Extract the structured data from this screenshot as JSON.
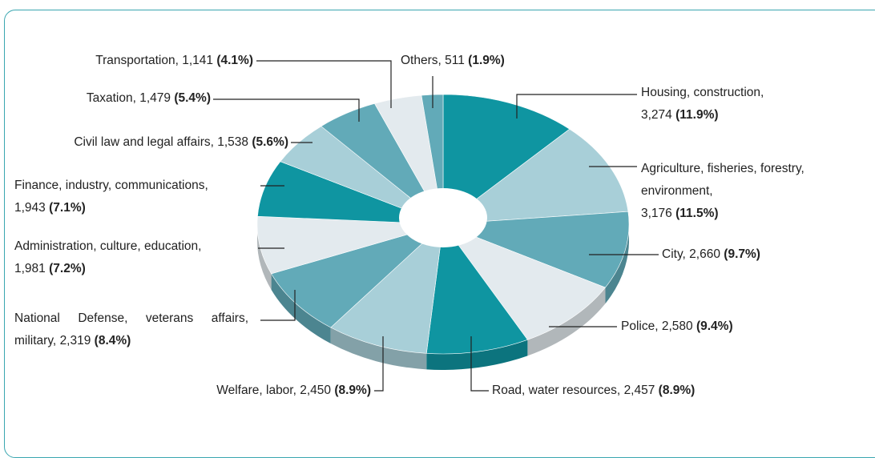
{
  "chart_data": {
    "type": "pie",
    "categories": [
      "Housing, construction,",
      "Agriculture, fisheries, forestry, environment,",
      "City,",
      "Police,",
      "Road, water resources,",
      "Welfare, labor,",
      "National Defense, veterans affairs, military,",
      "Administration, culture, education,",
      "Finance, industry, communications,",
      "Civil law and legal affairs,",
      "Taxation,",
      "Transportation,",
      "Others,"
    ],
    "values": [
      3274,
      3176,
      2660,
      2580,
      2457,
      2450,
      2319,
      1981,
      1943,
      1538,
      1479,
      1141,
      511
    ],
    "value_labels": [
      "3,274",
      "3,176",
      "2,660",
      "2,580",
      "2,457",
      "2,450",
      "2,319",
      "1,981",
      "1,943",
      "1,538",
      "1,479",
      "1,141",
      "511"
    ],
    "percent_labels": [
      "(11.9%)",
      "(11.5%)",
      "(9.7%)",
      "(9.4%)",
      "(8.9%)",
      "(8.9%)",
      "(8.4%)",
      "(7.2%)",
      "(7.1%)",
      "(5.6%)",
      "(5.4%)",
      "(4.1%)",
      "(1.9%)"
    ],
    "colors": [
      "#0f95a1",
      "#a8cfd8",
      "#62aab8",
      "#e3eaee",
      "#0f95a1",
      "#a8cfd8",
      "#62aab8",
      "#e3eaee",
      "#0f95a1",
      "#a8cfd8",
      "#62aab8",
      "#e3eaee",
      "#62aab8"
    ]
  }
}
